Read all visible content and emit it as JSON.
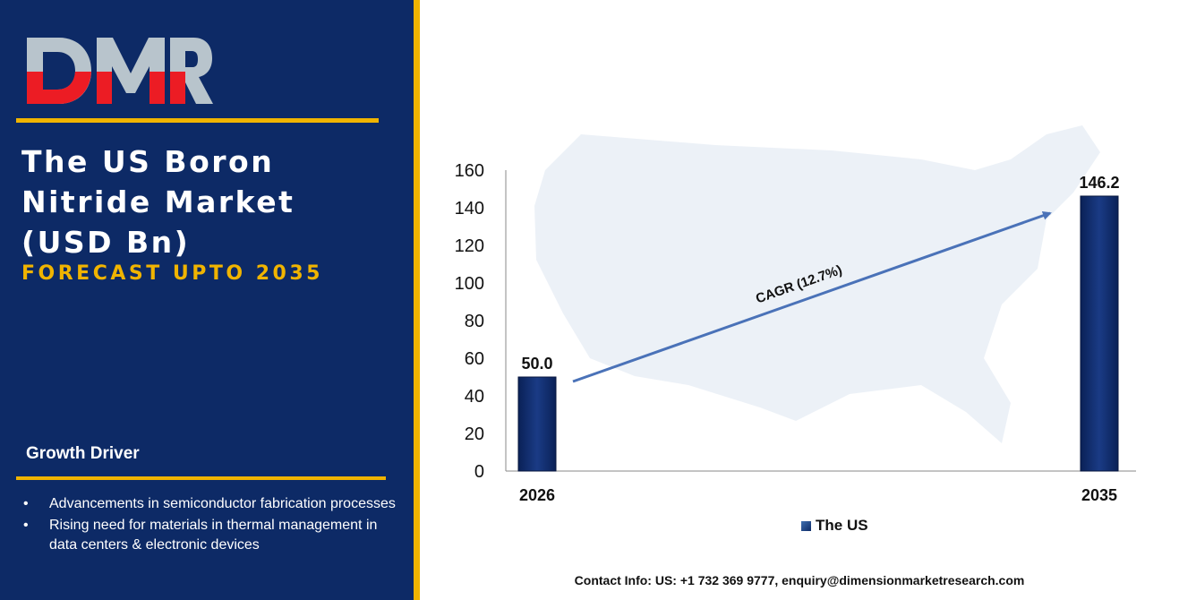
{
  "brand": {
    "logo_text": "DMR",
    "colors": {
      "navy": "#0d2a66",
      "gold": "#f0b400",
      "logo_red": "#ec1c24",
      "logo_gray": "#b8c4cc"
    }
  },
  "panel": {
    "title": "The US Boron Nitride Market (USD Bn)",
    "subtitle": "FORECAST UPTO 2035",
    "growth_driver_heading": "Growth Driver",
    "growth_drivers": [
      "Advancements in semiconductor fabrication processes",
      "Rising need for materials in thermal management in data centers & electronic devices"
    ]
  },
  "chart_data": {
    "type": "bar",
    "categories": [
      "2026",
      "2035"
    ],
    "series": [
      {
        "name": "The US",
        "values": [
          50.0,
          146.2
        ]
      }
    ],
    "data_labels": [
      "50.0",
      "146.2"
    ],
    "yticks": [
      0,
      20,
      40,
      60,
      80,
      100,
      120,
      140,
      160
    ],
    "ylim": [
      0,
      160
    ],
    "annotation": "CAGR (12.7%)",
    "legend_position": "bottom",
    "bar_color": "#0d2a66",
    "arrow_color": "#4a72b8"
  },
  "footer": {
    "contact": "Contact Info: US: +1 732 369 9777, enquiry@dimensionmarketresearch.com"
  }
}
